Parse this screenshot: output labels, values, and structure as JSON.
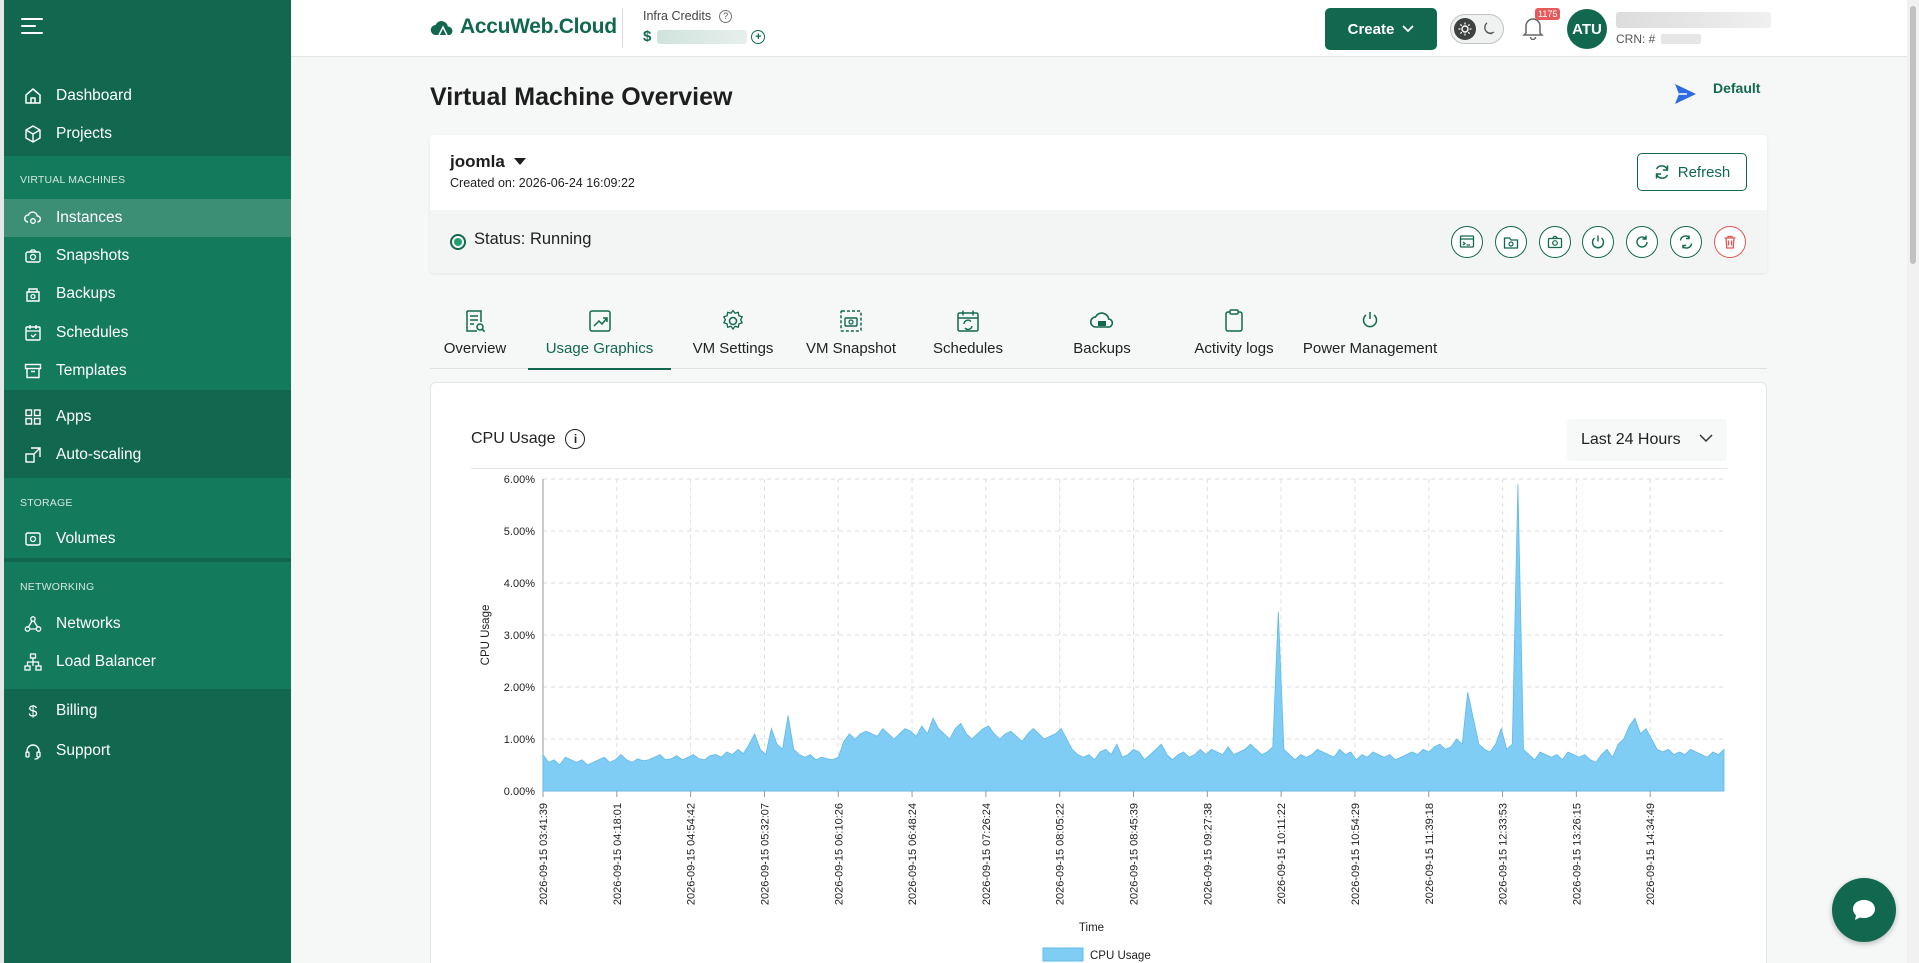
{
  "app": {
    "name": "AccuWeb.Cloud"
  },
  "sidebar": {
    "top_items": [
      {
        "label": "Dashboard",
        "icon": "home-icon"
      },
      {
        "label": "Projects",
        "icon": "cube-icon"
      }
    ],
    "vm_section": {
      "heading": "VIRTUAL MACHINES",
      "items": [
        {
          "label": "Instances",
          "icon": "cloud-gear-icon",
          "active": true
        },
        {
          "label": "Snapshots",
          "icon": "camera-icon"
        },
        {
          "label": "Backups",
          "icon": "backup-icon"
        },
        {
          "label": "Schedules",
          "icon": "calendar-icon"
        },
        {
          "label": "Templates",
          "icon": "archive-icon"
        }
      ]
    },
    "extra_items": [
      {
        "label": "Apps",
        "icon": "apps-grid-icon"
      },
      {
        "label": "Auto-scaling",
        "icon": "scaling-icon"
      }
    ],
    "storage_section": {
      "heading": "STORAGE",
      "items": [
        {
          "label": "Volumes",
          "icon": "volume-icon"
        }
      ]
    },
    "network_section": {
      "heading": "NETWORKING",
      "items": [
        {
          "label": "Networks",
          "icon": "network-icon"
        },
        {
          "label": "Load Balancer",
          "icon": "load-balancer-icon"
        }
      ]
    },
    "bottom_items": [
      {
        "label": "Billing",
        "icon": "dollar-icon"
      },
      {
        "label": "Support",
        "icon": "headset-icon"
      }
    ]
  },
  "topbar": {
    "credits_label": "Infra Credits",
    "credits_currency": "$",
    "create_label": "Create",
    "notification_count": "1175",
    "avatar_initials": "ATU",
    "crn_label": "CRN: #"
  },
  "page": {
    "title": "Virtual Machine Overview",
    "default_label": "Default"
  },
  "vm": {
    "name": "joomla",
    "created": "Created on: 2026-06-24 16:09:22",
    "refresh_label": "Refresh",
    "status": "Status: Running",
    "actions": [
      "console-icon",
      "add-snapshot-icon",
      "camera-icon",
      "power-icon",
      "restart-icon",
      "swap-icon",
      "trash-icon"
    ]
  },
  "tabs": [
    {
      "label": "Overview",
      "icon": "document-search-icon"
    },
    {
      "label": "Usage Graphics",
      "icon": "chart-up-icon",
      "active": true
    },
    {
      "label": "VM Settings",
      "icon": "gear-icon"
    },
    {
      "label": "VM Snapshot",
      "icon": "image-camera-icon"
    },
    {
      "label": "Schedules",
      "icon": "calendar-sync-icon"
    },
    {
      "label": "Backups",
      "icon": "cloud-backup-icon"
    },
    {
      "label": "Activity logs",
      "icon": "clipboard-icon"
    },
    {
      "label": "Power Management",
      "icon": "power-icon"
    }
  ],
  "usage": {
    "title": "CPU Usage",
    "range": "Last 24 Hours"
  },
  "colors": {
    "brand": "#11684f",
    "area_fill": "#7fcdf4",
    "danger": "#e05555"
  },
  "chart_data": {
    "type": "area",
    "title": "",
    "xlabel": "Time",
    "ylabel": "CPU Usage",
    "ylim": [
      0,
      6
    ],
    "y_ticks": [
      "0.00%",
      "1.00%",
      "2.00%",
      "3.00%",
      "4.00%",
      "5.00%",
      "6.00%"
    ],
    "x_ticks": [
      "2026-09-15 03:41:39",
      "2026-09-15 04:18:01",
      "2026-09-15 04:54:42",
      "2026-09-15 05:32:07",
      "2026-09-15 06:10:26",
      "2026-09-15 06:48:24",
      "2026-09-15 07:26:24",
      "2026-09-15 08:05:22",
      "2026-09-15 08:45:39",
      "2026-09-15 09:27:38",
      "2026-09-15 10:11:22",
      "2026-09-15 10:54:29",
      "2026-09-15 11:39:18",
      "2026-09-15 12:33:53",
      "2026-09-15 13:26:15",
      "2026-09-15 14:34:49"
    ],
    "grid": true,
    "legend": "bottom",
    "series": [
      {
        "name": "CPU Usage",
        "values": [
          0.7,
          0.55,
          0.6,
          0.5,
          0.65,
          0.6,
          0.55,
          0.6,
          0.5,
          0.55,
          0.6,
          0.65,
          0.55,
          0.6,
          0.7,
          0.6,
          0.55,
          0.62,
          0.58,
          0.6,
          0.65,
          0.7,
          0.6,
          0.62,
          0.68,
          0.6,
          0.65,
          0.7,
          0.62,
          0.6,
          0.68,
          0.7,
          0.65,
          0.75,
          0.7,
          0.8,
          0.72,
          0.9,
          1.1,
          0.8,
          0.7,
          1.2,
          0.9,
          0.8,
          1.45,
          0.8,
          0.7,
          0.65,
          0.7,
          0.6,
          0.65,
          0.62,
          0.6,
          0.65,
          0.95,
          1.1,
          1.0,
          1.1,
          1.15,
          1.1,
          1.05,
          1.2,
          1.1,
          1.0,
          1.1,
          1.2,
          1.15,
          1.05,
          1.25,
          1.1,
          1.4,
          1.2,
          1.1,
          1.0,
          1.2,
          1.3,
          1.1,
          1.0,
          1.1,
          1.2,
          1.25,
          1.1,
          1.0,
          1.1,
          1.15,
          1.05,
          0.95,
          1.1,
          1.2,
          1.1,
          1.0,
          1.05,
          1.1,
          1.2,
          1.0,
          0.8,
          0.7,
          0.65,
          0.7,
          0.6,
          0.75,
          0.8,
          0.7,
          0.9,
          0.65,
          0.7,
          0.8,
          0.75,
          0.6,
          0.7,
          0.8,
          0.9,
          0.7,
          0.6,
          0.7,
          0.75,
          0.65,
          0.7,
          0.8,
          0.7,
          0.8,
          0.75,
          0.7,
          0.85,
          0.7,
          0.75,
          0.8,
          0.9,
          0.8,
          0.7,
          0.75,
          0.85,
          3.45,
          0.8,
          0.7,
          0.6,
          0.7,
          0.65,
          0.7,
          0.8,
          0.75,
          0.7,
          0.65,
          0.8,
          0.7,
          0.75,
          0.6,
          0.7,
          0.65,
          0.75,
          0.7,
          0.65,
          0.7,
          0.6,
          0.65,
          0.7,
          0.75,
          0.7,
          0.8,
          0.75,
          0.85,
          0.9,
          0.8,
          0.85,
          1.0,
          0.9,
          1.9,
          1.4,
          0.9,
          0.8,
          0.75,
          0.9,
          1.2,
          0.8,
          0.9,
          5.9,
          0.8,
          0.7,
          0.6,
          0.75,
          0.7,
          0.65,
          0.7,
          0.6,
          0.75,
          0.7,
          0.65,
          0.7,
          0.6,
          0.55,
          0.7,
          0.8,
          0.65,
          0.9,
          1.0,
          1.25,
          1.4,
          1.1,
          1.2,
          1.0,
          0.8,
          0.75,
          0.8,
          0.7,
          0.75,
          0.7,
          0.8,
          0.75,
          0.7,
          0.65,
          0.75,
          0.7,
          0.8
        ]
      }
    ]
  },
  "chat": {
    "icon": "chat-bubble-icon"
  }
}
